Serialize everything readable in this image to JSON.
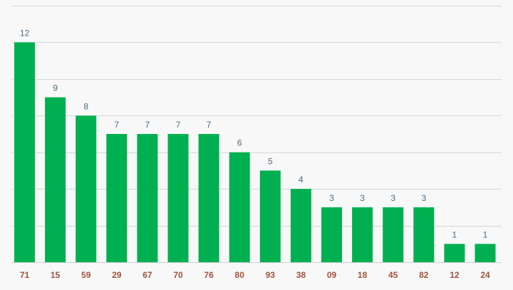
{
  "chart_data": {
    "type": "bar",
    "title": "",
    "xlabel": "",
    "ylabel": "",
    "categories": [
      "71",
      "15",
      "59",
      "29",
      "67",
      "70",
      "76",
      "80",
      "93",
      "38",
      "09",
      "18",
      "45",
      "82",
      "12",
      "24"
    ],
    "values": [
      12,
      9,
      8,
      7,
      7,
      7,
      7,
      6,
      5,
      4,
      3,
      3,
      3,
      3,
      1,
      1
    ],
    "ylim": [
      0,
      14
    ],
    "grid": true,
    "legend": "none",
    "data_labels": true,
    "colors": {
      "bar": "#00b050",
      "value_label": "#4a6a82",
      "tick_label": "#a0523d",
      "grid": "#d6d6d6",
      "background": "#f8f8f8"
    }
  }
}
